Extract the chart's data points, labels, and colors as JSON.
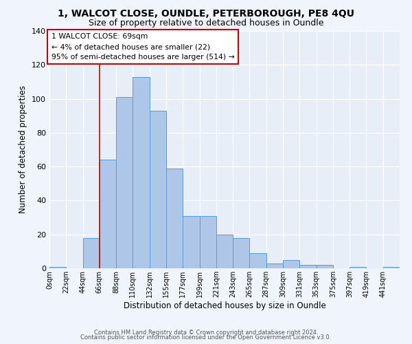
{
  "title1": "1, WALCOT CLOSE, OUNDLE, PETERBOROUGH, PE8 4QU",
  "title2": "Size of property relative to detached houses in Oundle",
  "xlabel": "Distribution of detached houses by size in Oundle",
  "ylabel": "Number of detached properties",
  "bin_labels": [
    "0sqm",
    "22sqm",
    "44sqm",
    "66sqm",
    "88sqm",
    "110sqm",
    "132sqm",
    "155sqm",
    "177sqm",
    "199sqm",
    "221sqm",
    "243sqm",
    "265sqm",
    "287sqm",
    "309sqm",
    "331sqm",
    "353sqm",
    "375sqm",
    "397sqm",
    "419sqm",
    "441sqm"
  ],
  "bar_heights": [
    1,
    0,
    18,
    64,
    101,
    113,
    93,
    59,
    31,
    31,
    20,
    18,
    9,
    3,
    5,
    2,
    2,
    0,
    1,
    0,
    1
  ],
  "bar_color": "#aec6e8",
  "bar_edge_color": "#5b9bd5",
  "bg_color": "#e8eef8",
  "fig_bg_color": "#f0f4fc",
  "annotation_box_text": "1 WALCOT CLOSE: 69sqm\n← 4% of detached houses are smaller (22)\n95% of semi-detached houses are larger (514) →",
  "annotation_box_color": "#ffffff",
  "annotation_box_edge_color": "#cc0000",
  "property_line_x": 66,
  "ylim": [
    0,
    140
  ],
  "yticks": [
    0,
    20,
    40,
    60,
    80,
    100,
    120,
    140
  ],
  "footer1": "Contains HM Land Registry data © Crown copyright and database right 2024.",
  "footer2": "Contains public sector information licensed under the Open Government Licence v3.0."
}
